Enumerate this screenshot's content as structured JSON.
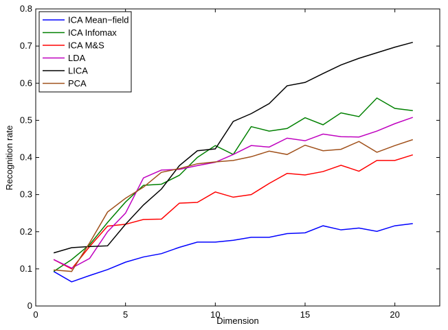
{
  "chart_data": {
    "type": "line",
    "x_label": "Dimension",
    "y_label": "Recognition rate",
    "x": [
      1,
      2,
      3,
      4,
      5,
      6,
      7,
      8,
      9,
      10,
      11,
      12,
      13,
      14,
      15,
      16,
      17,
      18,
      19,
      20,
      21
    ],
    "xlim": [
      0,
      22.5
    ],
    "xticks": [
      0,
      5,
      10,
      15,
      20
    ],
    "ylim": [
      0,
      0.8
    ],
    "yticks": [
      0,
      0.1,
      0.2,
      0.3,
      0.4,
      0.5,
      0.6,
      0.7,
      0.8
    ],
    "legend": "upper left",
    "series": [
      {
        "name": "ICA Mean−field",
        "color": "#0000ff",
        "values": [
          0.093,
          0.065,
          0.082,
          0.098,
          0.118,
          0.132,
          0.141,
          0.158,
          0.172,
          0.172,
          0.177,
          0.185,
          0.185,
          0.195,
          0.197,
          0.216,
          0.205,
          0.21,
          0.201,
          0.216,
          0.222
        ]
      },
      {
        "name": "ICA Infomax",
        "color": "#008000",
        "values": [
          0.093,
          0.125,
          0.165,
          0.225,
          0.28,
          0.325,
          0.328,
          0.352,
          0.4,
          0.432,
          0.408,
          0.483,
          0.471,
          0.478,
          0.507,
          0.488,
          0.52,
          0.51,
          0.56,
          0.532,
          0.526
        ]
      },
      {
        "name": "ICA M&S",
        "color": "#ff0000",
        "values": [
          0.125,
          0.1,
          0.16,
          0.215,
          0.22,
          0.233,
          0.234,
          0.277,
          0.279,
          0.307,
          0.293,
          0.3,
          0.33,
          0.357,
          0.353,
          0.362,
          0.379,
          0.363,
          0.392,
          0.392,
          0.407
        ]
      },
      {
        "name": "LDA",
        "color": "#bf00bf",
        "values": [
          0.125,
          0.102,
          0.128,
          0.2,
          0.25,
          0.345,
          0.366,
          0.368,
          0.378,
          0.387,
          0.408,
          0.432,
          0.428,
          0.452,
          0.445,
          0.463,
          0.456,
          0.455,
          0.471,
          0.491,
          0.508
        ]
      },
      {
        "name": "LICA",
        "color": "#000000",
        "values": [
          0.143,
          0.157,
          0.16,
          0.162,
          0.22,
          0.272,
          0.315,
          0.378,
          0.418,
          0.423,
          0.497,
          0.518,
          0.545,
          0.593,
          0.602,
          0.626,
          0.649,
          0.667,
          0.682,
          0.697,
          0.71
        ]
      },
      {
        "name": "PCA",
        "color": "#a0501a",
        "values": [
          0.097,
          0.093,
          0.17,
          0.253,
          0.29,
          0.32,
          0.36,
          0.37,
          0.383,
          0.388,
          0.392,
          0.402,
          0.417,
          0.408,
          0.433,
          0.418,
          0.422,
          0.443,
          0.414,
          0.432,
          0.448
        ]
      }
    ]
  }
}
